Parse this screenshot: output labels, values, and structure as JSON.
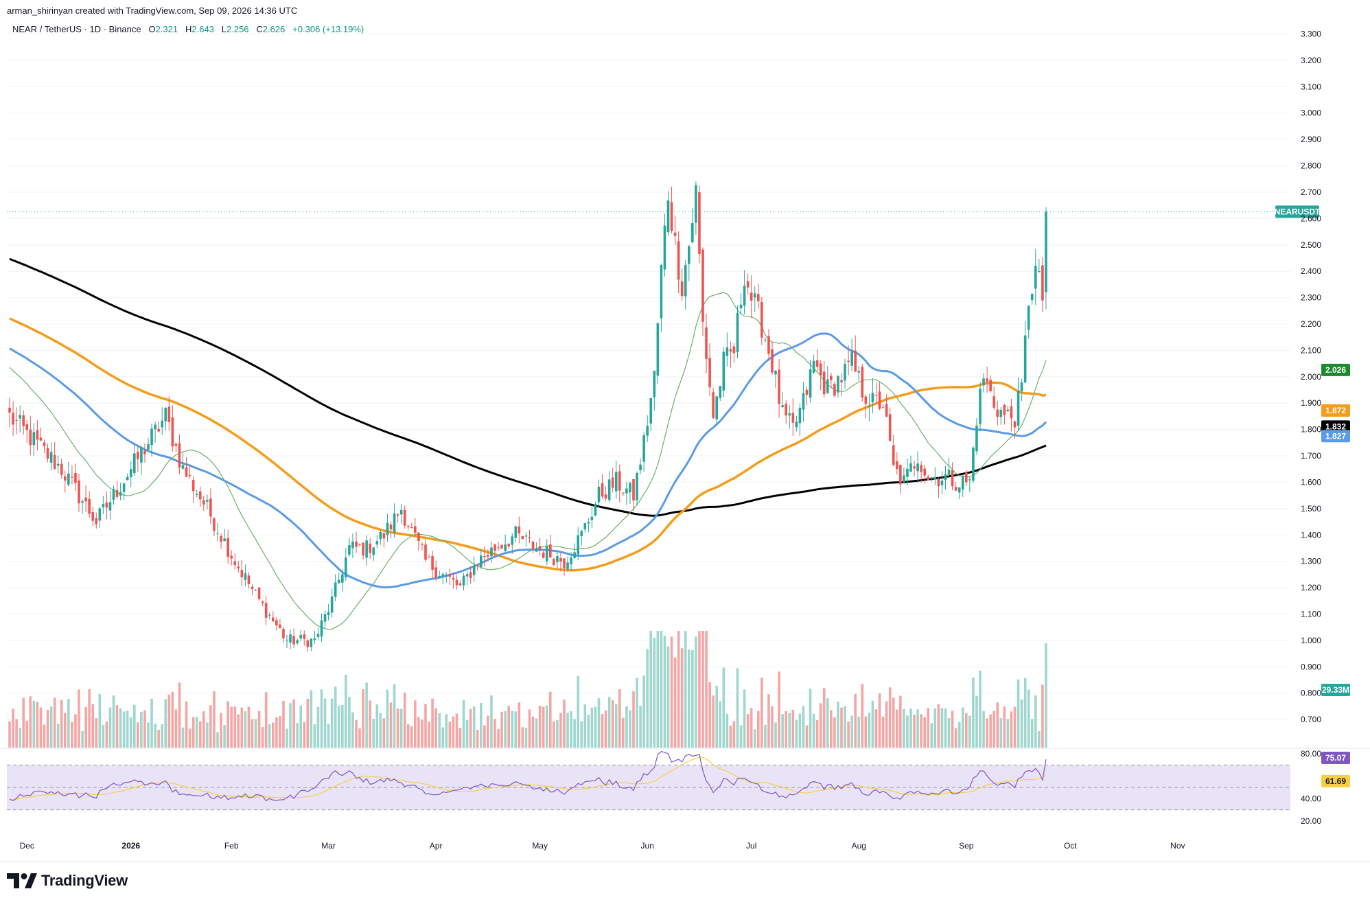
{
  "header": {
    "credit": "arman_shirinyan created with TradingView.com, Sep 09, 2026 14:36 UTC"
  },
  "symbol_bar": {
    "title": "NEAR / TetherUS · 1D · Binance",
    "o_label": "O",
    "o_value": "2.321",
    "h_label": "H",
    "h_value": "2.643",
    "l_label": "L",
    "l_value": "2.256",
    "c_label": "C",
    "c_value": "2.626",
    "change": "+0.306 (+13.19%)"
  },
  "brand": {
    "wordmark": "TradingView",
    "logo_icon": "tradingview-logo-icon"
  },
  "colors": {
    "up": "#26a69a",
    "down": "#ef5350",
    "vol_up": "#9fd7ce",
    "vol_down": "#f4a6a4",
    "ma_black": "#000000",
    "ma_orange": "#f59c1a",
    "ma_blue": "#5b9be6",
    "ma_green": "#66b366",
    "rsi_line": "#7e57c2",
    "rsi_ma": "#f7cf45",
    "rsi_band": "#e9e3f7"
  },
  "chart_data": [
    {
      "type": "candlestick",
      "symbol_tag": "NEARUSDT",
      "price_ylim": [
        0.63,
        3.33
      ],
      "y_ticks": [
        "3.300",
        "3.200",
        "3.100",
        "3.000",
        "2.900",
        "2.800",
        "2.700",
        "2.600",
        "2.500",
        "2.400",
        "2.300",
        "2.200",
        "2.100",
        "2.000",
        "1.900",
        "1.800",
        "1.700",
        "1.600",
        "1.500",
        "1.400",
        "1.300",
        "1.200",
        "1.100",
        "1.000",
        "0.900",
        "0.800",
        "0.700"
      ],
      "x_labels": [
        "Dec",
        "2026",
        "Feb",
        "Mar",
        "Apr",
        "May",
        "Jun",
        "Jul",
        "Aug",
        "Sep",
        "Oct",
        "Nov"
      ],
      "last_price": 2.626,
      "price_tags": [
        {
          "label": "2.026",
          "value": 2.026,
          "color": "#1b8a2e"
        },
        {
          "label": "1.872",
          "value": 1.872,
          "color": "#f59c1a"
        },
        {
          "label": "1.832",
          "value": 1.832,
          "color": "#000000"
        },
        {
          "label": "1.827",
          "value": 1.827,
          "color": "#5b9be6"
        }
      ],
      "volume_tag": "29.33M",
      "close_anchors": [
        [
          0,
          1.85
        ],
        [
          15,
          1.65
        ],
        [
          25,
          1.45
        ],
        [
          35,
          1.65
        ],
        [
          45,
          1.85
        ],
        [
          50,
          1.65
        ],
        [
          57,
          1.5
        ],
        [
          65,
          1.3
        ],
        [
          72,
          1.15
        ],
        [
          80,
          1.0
        ],
        [
          88,
          1.0
        ],
        [
          93,
          1.15
        ],
        [
          98,
          1.35
        ],
        [
          103,
          1.35
        ],
        [
          108,
          1.4
        ],
        [
          113,
          1.5
        ],
        [
          120,
          1.3
        ],
        [
          125,
          1.25
        ],
        [
          130,
          1.2
        ],
        [
          135,
          1.3
        ],
        [
          140,
          1.35
        ],
        [
          146,
          1.4
        ],
        [
          152,
          1.35
        ],
        [
          160,
          1.3
        ],
        [
          165,
          1.4
        ],
        [
          170,
          1.55
        ],
        [
          175,
          1.6
        ],
        [
          180,
          1.55
        ],
        [
          183,
          1.75
        ],
        [
          186,
          2.0
        ],
        [
          188,
          2.4
        ],
        [
          190,
          2.7
        ],
        [
          192,
          2.5
        ],
        [
          194,
          2.35
        ],
        [
          196,
          2.5
        ],
        [
          198,
          2.7
        ],
        [
          200,
          2.2
        ],
        [
          203,
          1.85
        ],
        [
          206,
          2.05
        ],
        [
          209,
          2.1
        ],
        [
          212,
          2.4
        ],
        [
          214,
          2.3
        ],
        [
          217,
          2.2
        ],
        [
          220,
          2.05
        ],
        [
          223,
          1.85
        ],
        [
          226,
          1.8
        ],
        [
          229,
          1.9
        ],
        [
          232,
          2.05
        ],
        [
          236,
          1.95
        ],
        [
          240,
          2.0
        ],
        [
          243,
          2.05
        ],
        [
          246,
          1.95
        ],
        [
          249,
          1.9
        ],
        [
          252,
          1.9
        ],
        [
          255,
          1.65
        ],
        [
          258,
          1.6
        ],
        [
          262,
          1.7
        ],
        [
          265,
          1.62
        ],
        [
          270,
          1.62
        ],
        [
          274,
          1.6
        ],
        [
          277,
          1.6
        ],
        [
          279,
          1.85
        ],
        [
          281,
          2.0
        ],
        [
          284,
          1.9
        ],
        [
          287,
          1.85
        ],
        [
          290,
          1.85
        ],
        [
          292,
          1.95
        ],
        [
          294,
          2.3
        ],
        [
          296,
          2.4
        ],
        [
          298,
          2.3
        ],
        [
          299,
          2.626
        ]
      ],
      "rsi": {
        "ylim": [
          20,
          80
        ],
        "ticks": [
          "80.00",
          "40.00",
          "20.00"
        ],
        "upper": 70,
        "lower": 30,
        "value_label": "75.07",
        "ma_label": "61.69"
      }
    }
  ]
}
